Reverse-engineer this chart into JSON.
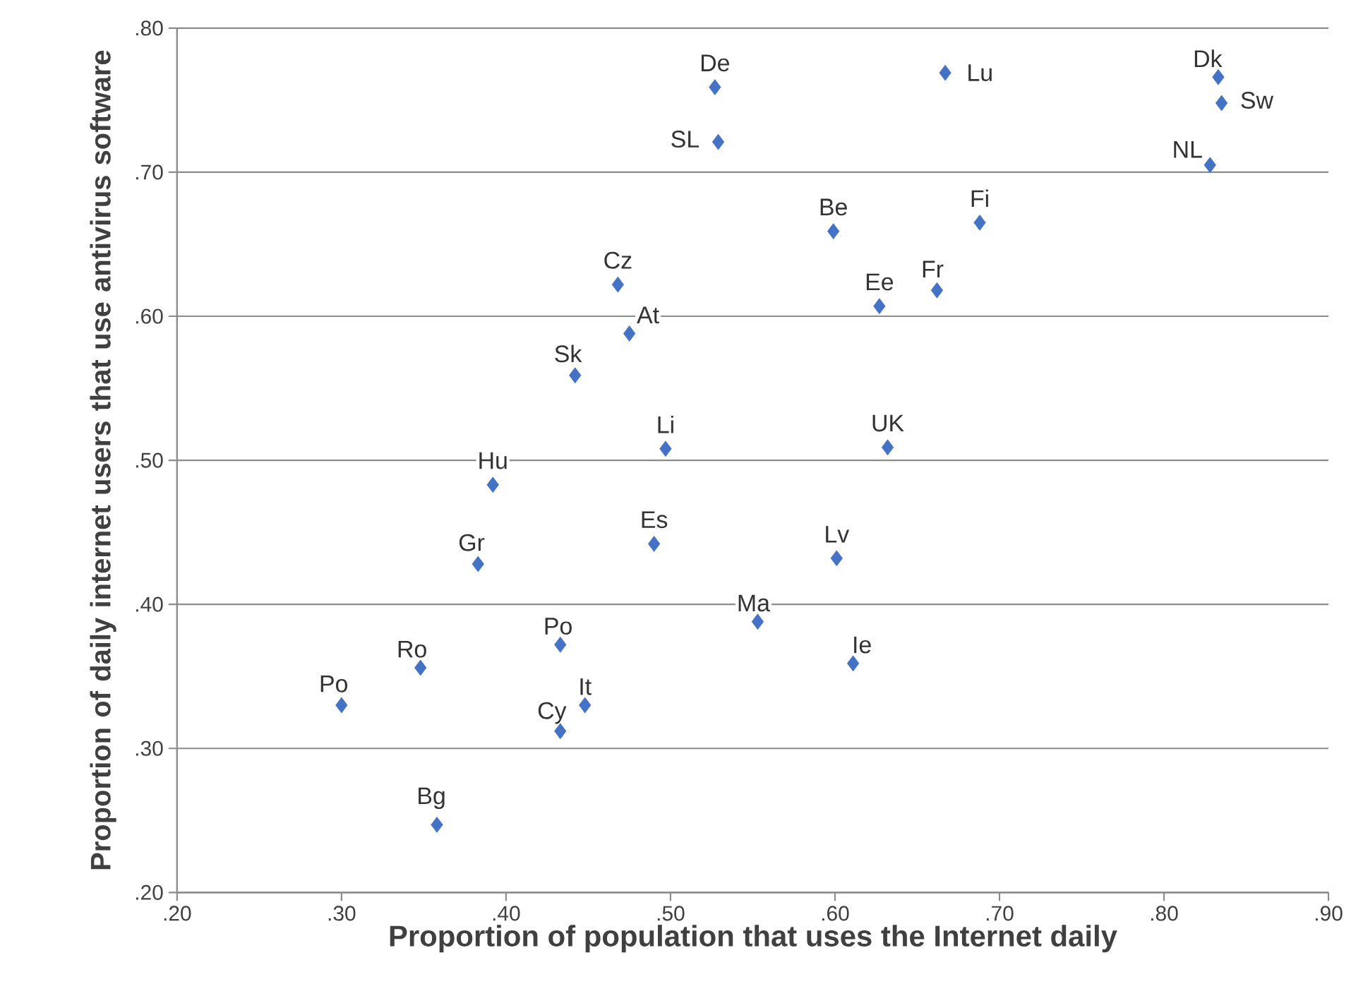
{
  "chart_data": {
    "type": "scatter",
    "xlabel": "Proportion of population that uses the Internet daily",
    "ylabel": "Proportion of daily internet users that use antivirus software",
    "x": [
      0.527,
      0.667,
      0.833,
      0.835,
      0.828,
      0.529,
      0.599,
      0.688,
      0.468,
      0.627,
      0.662,
      0.475,
      0.442,
      0.497,
      0.632,
      0.392,
      0.383,
      0.49,
      0.601,
      0.553,
      0.611,
      0.433,
      0.348,
      0.3,
      0.448,
      0.433,
      0.358
    ],
    "values": [
      0.759,
      0.769,
      0.766,
      0.748,
      0.705,
      0.721,
      0.659,
      0.665,
      0.622,
      0.607,
      0.618,
      0.588,
      0.559,
      0.508,
      0.509,
      0.483,
      0.428,
      0.442,
      0.432,
      0.388,
      0.359,
      0.372,
      0.356,
      0.33,
      0.33,
      0.312,
      0.247
    ],
    "color": "#4472c4",
    "marker": "diamond",
    "grid": "y",
    "xlim": [
      0.2,
      0.9
    ],
    "xticks": [
      {
        "value": 0.2,
        "label": ".20"
      },
      {
        "value": 0.3,
        "label": ".30"
      },
      {
        "value": 0.4,
        "label": ".40"
      },
      {
        "value": 0.5,
        "label": ".50"
      },
      {
        "value": 0.6,
        "label": ".60"
      },
      {
        "value": 0.7,
        "label": ".70"
      },
      {
        "value": 0.8,
        "label": ".80"
      },
      {
        "value": 0.9,
        "label": ".90"
      }
    ],
    "ylim": [
      0.2,
      0.8
    ],
    "yticks": [
      {
        "value": 0.2,
        "label": ".20"
      },
      {
        "value": 0.3,
        "label": ".30"
      },
      {
        "value": 0.4,
        "label": ".40"
      },
      {
        "value": 0.5,
        "label": ".50"
      },
      {
        "value": 0.6,
        "label": ".60"
      },
      {
        "value": 0.7,
        "label": ".70"
      },
      {
        "value": 0.8,
        "label": ".80"
      }
    ],
    "annotations": [
      {
        "text": "De",
        "x": 0.527,
        "y": 0.759
      },
      {
        "text": "Lu",
        "x": 0.667,
        "y": 0.769
      },
      {
        "text": "Dk",
        "x": 0.833,
        "y": 0.766
      },
      {
        "text": "Sw",
        "x": 0.835,
        "y": 0.748
      },
      {
        "text": "NL",
        "x": 0.828,
        "y": 0.705
      },
      {
        "text": "SL",
        "x": 0.529,
        "y": 0.721
      },
      {
        "text": "Be",
        "x": 0.599,
        "y": 0.659
      },
      {
        "text": "Fi",
        "x": 0.688,
        "y": 0.665
      },
      {
        "text": "Cz",
        "x": 0.468,
        "y": 0.622
      },
      {
        "text": "Ee",
        "x": 0.627,
        "y": 0.607
      },
      {
        "text": "Fr",
        "x": 0.662,
        "y": 0.618
      },
      {
        "text": "At",
        "x": 0.475,
        "y": 0.588
      },
      {
        "text": "Sk",
        "x": 0.442,
        "y": 0.559
      },
      {
        "text": "Li",
        "x": 0.497,
        "y": 0.508
      },
      {
        "text": "UK",
        "x": 0.632,
        "y": 0.509
      },
      {
        "text": "Hu",
        "x": 0.392,
        "y": 0.483
      },
      {
        "text": "Gr",
        "x": 0.383,
        "y": 0.428
      },
      {
        "text": "Es",
        "x": 0.49,
        "y": 0.442
      },
      {
        "text": "Lv",
        "x": 0.601,
        "y": 0.432
      },
      {
        "text": "Ma",
        "x": 0.553,
        "y": 0.388
      },
      {
        "text": "Ie",
        "x": 0.611,
        "y": 0.359
      },
      {
        "text": "Po",
        "x": 0.433,
        "y": 0.372
      },
      {
        "text": "Ro",
        "x": 0.348,
        "y": 0.356
      },
      {
        "text": "Po",
        "x": 0.3,
        "y": 0.33
      },
      {
        "text": "It",
        "x": 0.448,
        "y": 0.33
      },
      {
        "text": "Cy",
        "x": 0.433,
        "y": 0.312
      },
      {
        "text": "Bg",
        "x": 0.358,
        "y": 0.247
      }
    ]
  }
}
